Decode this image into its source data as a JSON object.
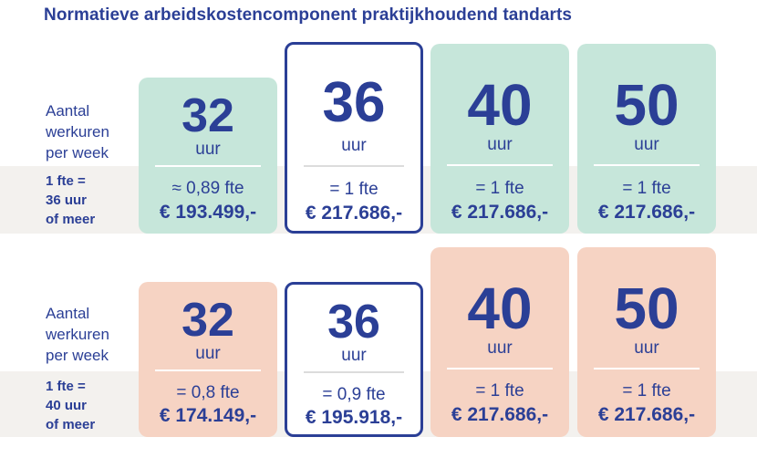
{
  "title": "Normatieve arbeidskostencomponent praktijkhoudend tandarts",
  "sections": [
    {
      "hours_label": "Aantal\nwerkuren\nper week",
      "fte_label": "1 fte =\n36 uur\nof meer",
      "cards": [
        {
          "hours": "32",
          "unit": "uur",
          "fte": "≈ 0,89 fte",
          "cost": "€ 193.499,-"
        },
        {
          "hours": "36",
          "unit": "uur",
          "fte": "= 1 fte",
          "cost": "€ 217.686,-"
        },
        {
          "hours": "40",
          "unit": "uur",
          "fte": "= 1 fte",
          "cost": "€ 217.686,-"
        },
        {
          "hours": "50",
          "unit": "uur",
          "fte": "= 1 fte",
          "cost": "€ 217.686,-"
        }
      ]
    },
    {
      "hours_label": "Aantal\nwerkuren\nper week",
      "fte_label": "1 fte =\n40 uur\nof meer",
      "cards": [
        {
          "hours": "32",
          "unit": "uur",
          "fte": "= 0,8 fte",
          "cost": "€ 174.149,-"
        },
        {
          "hours": "36",
          "unit": "uur",
          "fte": "= 0,9 fte",
          "cost": "€ 195.918,-"
        },
        {
          "hours": "40",
          "unit": "uur",
          "fte": "= 1 fte",
          "cost": "€ 217.686,-"
        },
        {
          "hours": "50",
          "unit": "uur",
          "fte": "= 1 fte",
          "cost": "€ 217.686,-"
        }
      ]
    }
  ],
  "colors": {
    "text": "#2b3f96",
    "green_card": "#c6e6da",
    "pink_card": "#f6d3c3",
    "band": "#f3f1ee"
  }
}
